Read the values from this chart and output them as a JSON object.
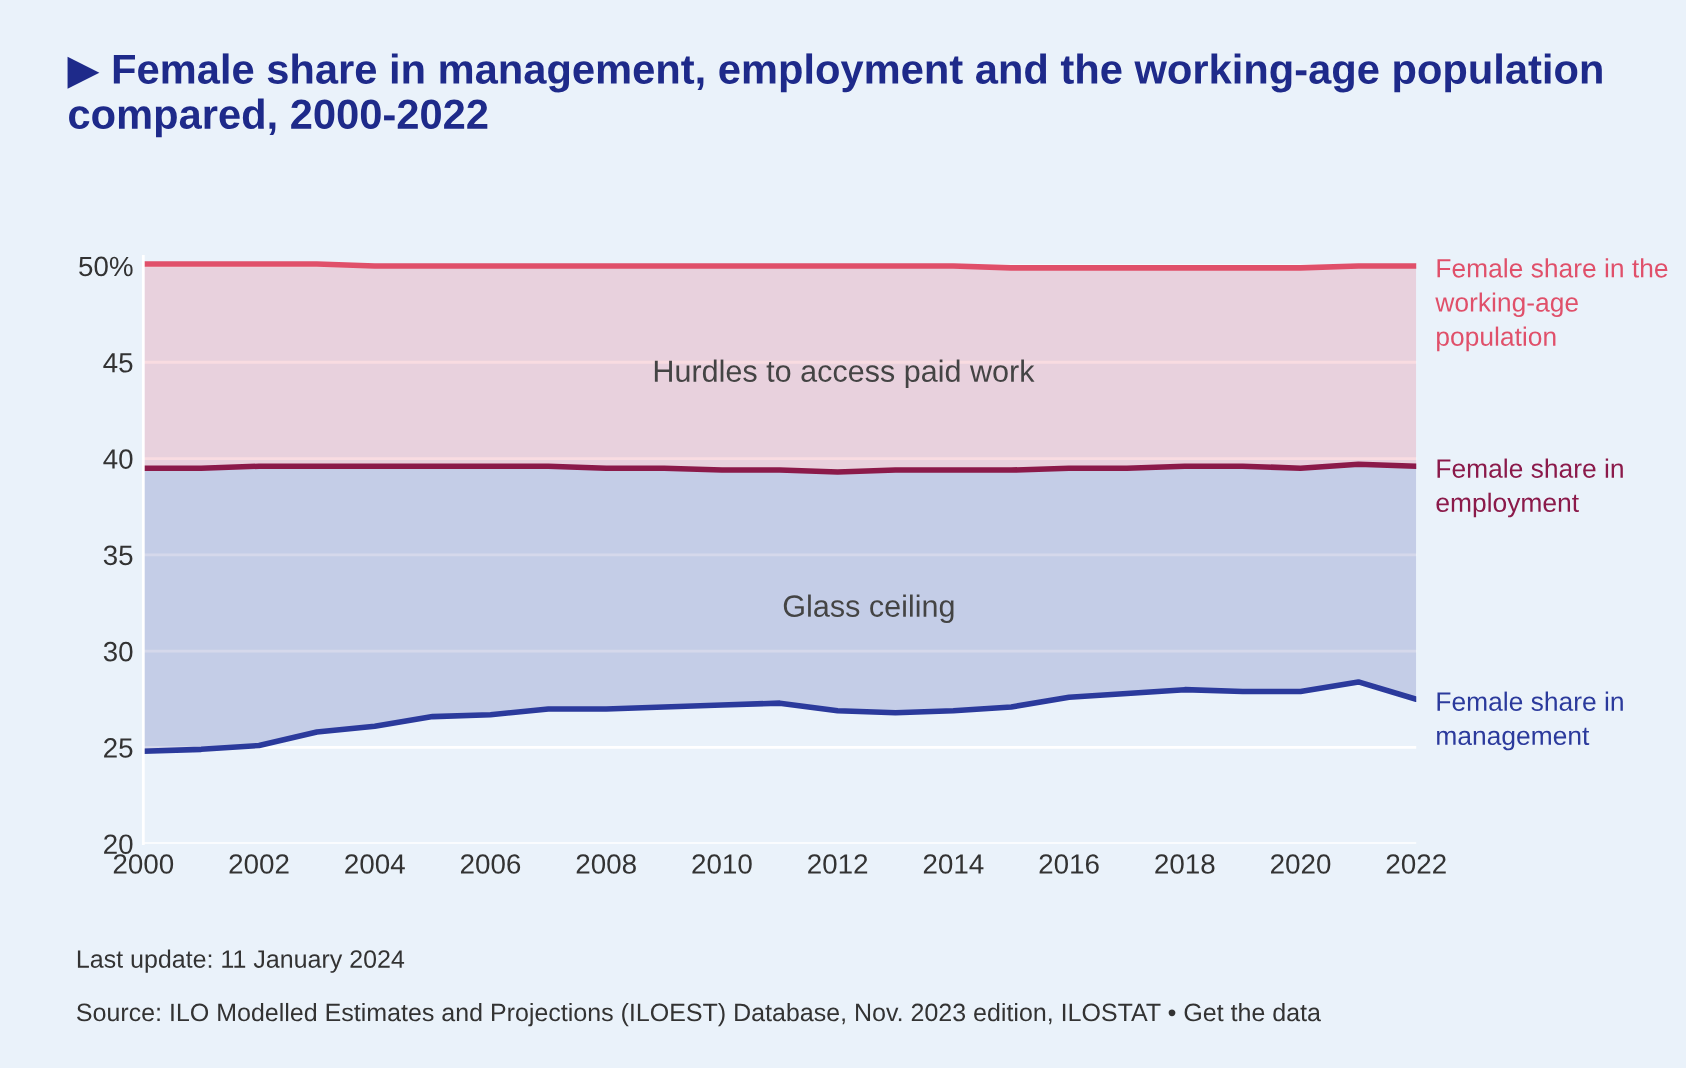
{
  "chart_data": {
    "type": "line",
    "title": "▶ Female share in management, employment and the working-age population compared, 2000-2022",
    "x": [
      2000,
      2001,
      2002,
      2003,
      2004,
      2005,
      2006,
      2007,
      2008,
      2009,
      2010,
      2011,
      2012,
      2013,
      2014,
      2015,
      2016,
      2017,
      2018,
      2019,
      2020,
      2021,
      2022
    ],
    "series": [
      {
        "name": "Female share in the working-age population",
        "color": "#e0506a",
        "values": [
          50.1,
          50.1,
          50.1,
          50.1,
          50.0,
          50.0,
          50.0,
          50.0,
          50.0,
          50.0,
          50.0,
          50.0,
          50.0,
          50.0,
          50.0,
          49.9,
          49.9,
          49.9,
          49.9,
          49.9,
          49.9,
          50.0,
          50.0
        ],
        "lower": [
          39.5,
          39.5,
          39.6,
          39.6,
          39.6,
          39.6,
          39.6,
          39.6,
          39.5,
          39.5,
          39.4,
          39.4,
          39.3,
          39.4,
          39.4,
          39.4,
          39.5,
          39.5,
          39.6,
          39.6,
          39.5,
          39.7,
          39.6
        ],
        "upper": [
          50.1,
          50.1,
          50.1,
          50.1,
          50.0,
          50.0,
          50.0,
          50.0,
          50.0,
          50.0,
          50.0,
          50.0,
          50.0,
          50.0,
          50.0,
          49.9,
          49.9,
          49.9,
          49.9,
          49.9,
          49.9,
          50.0,
          50.0
        ]
      },
      {
        "name": "Female share in employment",
        "color": "#8b1a4a",
        "values": [
          39.5,
          39.5,
          39.6,
          39.6,
          39.6,
          39.6,
          39.6,
          39.6,
          39.5,
          39.5,
          39.4,
          39.4,
          39.3,
          39.4,
          39.4,
          39.4,
          39.5,
          39.5,
          39.6,
          39.6,
          39.5,
          39.7,
          39.6
        ]
      },
      {
        "name": "Female share in management",
        "color": "#2b3a9c",
        "values": [
          24.8,
          24.9,
          25.1,
          25.8,
          26.1,
          26.6,
          26.7,
          27.0,
          27.0,
          27.1,
          27.2,
          27.3,
          26.9,
          26.8,
          26.9,
          27.1,
          27.6,
          27.8,
          28.0,
          27.9,
          27.9,
          28.4,
          27.5
        ],
        "lower": [
          24.8,
          24.9,
          25.1,
          25.8,
          26.1,
          26.6,
          26.7,
          27.0,
          27.0,
          27.1,
          27.2,
          27.3,
          26.9,
          26.8,
          26.9,
          27.1,
          27.6,
          27.8,
          28.0,
          27.9,
          27.9,
          28.4,
          27.5
        ],
        "upper": [
          39.5,
          39.5,
          39.6,
          39.6,
          39.6,
          39.6,
          39.6,
          39.6,
          39.5,
          39.5,
          39.4,
          39.4,
          39.3,
          39.4,
          39.4,
          39.4,
          39.5,
          39.5,
          39.6,
          39.6,
          39.5,
          39.7,
          39.6
        ]
      }
    ],
    "xlim": [
      2000,
      2022
    ],
    "xticks": [
      2000,
      2002,
      2004,
      2006,
      2008,
      2010,
      2012,
      2014,
      2016,
      2018,
      2020,
      2022
    ],
    "ylim": [
      20,
      50.5
    ],
    "yticks": [
      20,
      25,
      30,
      35,
      40,
      45,
      {
        "value": 50,
        "label": "50%"
      }
    ],
    "grid": "y",
    "legend": false,
    "annotations": [
      "Hurdles to access paid work",
      "Glass ceiling",
      "Last update: 11 January 2024",
      "Source: ILO Modelled Estimates and Projections (ILOEST) Database, Nov. 2023 edition, ILOSTAT • Get the data"
    ]
  }
}
